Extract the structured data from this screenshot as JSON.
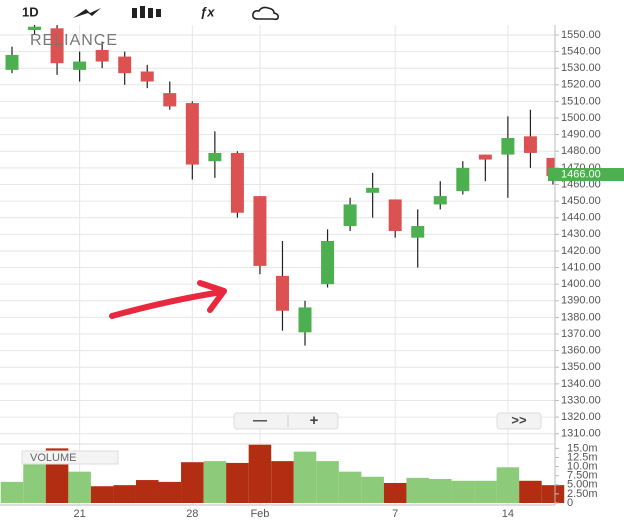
{
  "toolbar": {
    "interval": "1D"
  },
  "controls": {
    "zoom_out": "—",
    "zoom_in": "+",
    "scroll_end": ">>"
  },
  "chart_data": [
    {
      "type": "candlestick",
      "title": "RELIANCE",
      "categories": [
        null,
        null,
        null,
        "21",
        null,
        null,
        null,
        null,
        "28",
        null,
        null,
        "Feb",
        null,
        null,
        null,
        null,
        null,
        "7",
        null,
        null,
        null,
        null,
        "14",
        null,
        null
      ],
      "open": [
        1529,
        1553,
        1554,
        1529,
        1541,
        1537,
        1528,
        1515,
        1509,
        1474,
        1479,
        1453,
        1405,
        1371,
        1400,
        1435,
        1455,
        1451,
        1428,
        1448,
        1456,
        1478,
        1478,
        1489,
        1476
      ],
      "high": [
        1543,
        1556,
        1556,
        1540,
        1546,
        1540,
        1532,
        1522,
        1510,
        1492,
        1480,
        1453,
        1426,
        1390,
        1433,
        1452,
        1467,
        1451,
        1445,
        1462,
        1474,
        1478,
        1501,
        1505,
        1476
      ],
      "low": [
        1527,
        1550,
        1526,
        1522,
        1530,
        1520,
        1518,
        1505,
        1463,
        1464,
        1440,
        1406,
        1372,
        1363,
        1398,
        1432,
        1440,
        1428,
        1410,
        1445,
        1454,
        1462,
        1452,
        1470,
        1460
      ],
      "close": [
        1538,
        1555,
        1533,
        1534,
        1534,
        1527,
        1522,
        1507,
        1472,
        1479,
        1443,
        1411,
        1384,
        1386,
        1426,
        1448,
        1458,
        1432,
        1435,
        1453,
        1470,
        1475,
        1488,
        1479,
        1465
      ],
      "up_color": "#4caf50",
      "down_color": "#dc5252",
      "ylim": [
        1305,
        1556
      ],
      "yticks": [
        {
          "value": 1310,
          "label": "1310.00"
        },
        {
          "value": 1320,
          "label": "1320.00"
        },
        {
          "value": 1330,
          "label": "1330.00"
        },
        {
          "value": 1340,
          "label": "1340.00"
        },
        {
          "value": 1350,
          "label": "1350.00"
        },
        {
          "value": 1360,
          "label": "1360.00"
        },
        {
          "value": 1370,
          "label": "1370.00"
        },
        {
          "value": 1380,
          "label": "1380.00"
        },
        {
          "value": 1390,
          "label": "1390.00"
        },
        {
          "value": 1400,
          "label": "1400.00"
        },
        {
          "value": 1410,
          "label": "1410.00"
        },
        {
          "value": 1420,
          "label": "1420.00"
        },
        {
          "value": 1430,
          "label": "1430.00"
        },
        {
          "value": 1440,
          "label": "1440.00"
        },
        {
          "value": 1450,
          "label": "1450.00"
        },
        {
          "value": 1460,
          "label": "1460.00"
        },
        {
          "value": 1470,
          "label": "1470.00"
        },
        {
          "value": 1480,
          "label": "1480.00"
        },
        {
          "value": 1490,
          "label": "1490.00"
        },
        {
          "value": 1500,
          "label": "1500.00"
        },
        {
          "value": 1510,
          "label": "1510.00"
        },
        {
          "value": 1520,
          "label": "1520.00"
        },
        {
          "value": 1530,
          "label": "1530.00"
        },
        {
          "value": 1540,
          "label": "1540.00"
        },
        {
          "value": 1550,
          "label": "1550.00"
        }
      ],
      "last_price": {
        "value": 1466,
        "label": "1466.00"
      },
      "grid": true
    },
    {
      "type": "bar",
      "title": "VOLUME",
      "values": [
        5.8,
        13.5,
        15.0,
        8.6,
        4.6,
        4.9,
        6.3,
        5.8,
        11.2,
        11.5,
        11.0,
        16.0,
        11.5,
        14.1,
        11.5,
        8.6,
        7.2,
        5.5,
        6.9,
        6.6,
        6.1,
        6.1,
        9.8,
        6.1,
        4.9
      ],
      "colors": [
        "#8ccb79",
        "#8ccb79",
        "#b32d12",
        "#8ccb79",
        "#b32d12",
        "#b32d12",
        "#b32d12",
        "#b32d12",
        "#b32d12",
        "#8ccb79",
        "#b32d12",
        "#b32d12",
        "#b32d12",
        "#8ccb79",
        "#8ccb79",
        "#8ccb79",
        "#8ccb79",
        "#b32d12",
        "#8ccb79",
        "#8ccb79",
        "#8ccb79",
        "#8ccb79",
        "#8ccb79",
        "#b32d12",
        "#b32d12"
      ],
      "ylim": [
        0,
        16.2
      ],
      "yticks": [
        0,
        {
          "value": 2.5,
          "label": "2.50m"
        },
        {
          "value": 5,
          "label": "5.00m"
        },
        {
          "value": 7.5,
          "label": "7.50m"
        },
        {
          "value": 10,
          "label": "10.0m"
        },
        {
          "value": 12.5,
          "label": "12.5m"
        },
        {
          "value": 15,
          "label": "15.0m"
        }
      ]
    }
  ]
}
